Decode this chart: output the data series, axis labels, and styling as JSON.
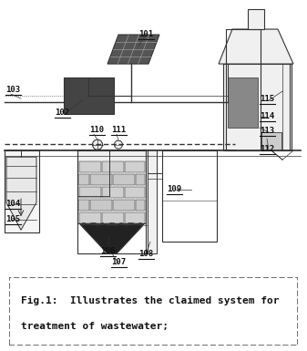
{
  "fig_width": 3.37,
  "fig_height": 3.85,
  "dpi": 100,
  "bg_color": "#ffffff",
  "line_color": "#555555",
  "dark_color": "#333333",
  "caption_line1": "Fig.1:  Illustrates the claimed system for",
  "caption_line2": "treatment of wastewater;",
  "caption_fontsize": 8.0,
  "label_fontsize": 6.5
}
